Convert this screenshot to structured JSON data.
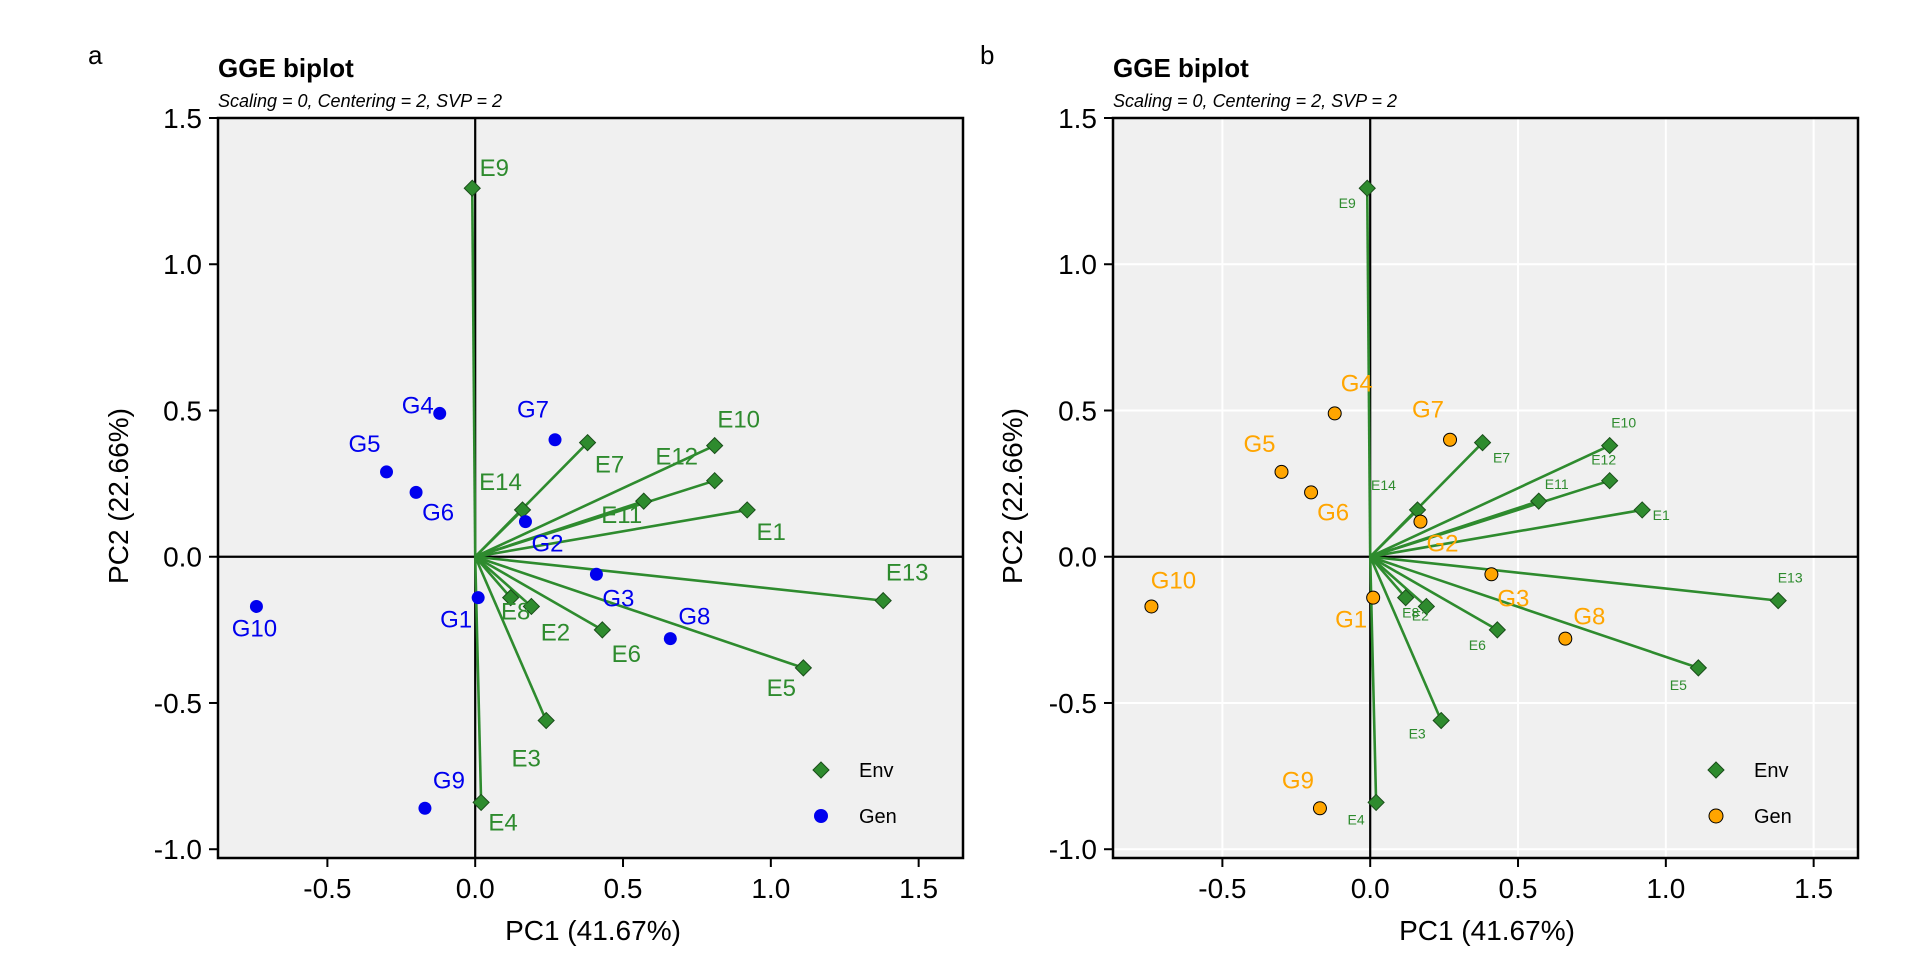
{
  "figure_panels": [
    "a",
    "b"
  ],
  "chart_data": [
    {
      "type": "scatter",
      "panel_label": "a",
      "title": "GGE biplot",
      "subtitle": "Scaling = 0, Centering = 2, SVP = 2",
      "xlabel": "PC1 (41.67%)",
      "ylabel": "PC2 (22.66%)",
      "xlim": [
        -0.87,
        1.65
      ],
      "ylim": [
        -1.03,
        1.5
      ],
      "xticks": [
        -0.5,
        0.0,
        0.5,
        1.0,
        1.5
      ],
      "xtick_labels": [
        "-0.5",
        "0.0",
        "0.5",
        "1.0",
        "1.5"
      ],
      "yticks": [
        -1.0,
        -0.5,
        0.0,
        0.5,
        1.0,
        1.5
      ],
      "ytick_labels": [
        "-1.0",
        "-0.5",
        "0.0",
        "0.5",
        "1.0",
        "1.5"
      ],
      "grid": false,
      "legend_position": "bottom-right",
      "legend": [
        "Env",
        "Gen"
      ],
      "env_color": "#2e8b2e",
      "gen_color": "#0000ee",
      "env_label_size": "large",
      "series": [
        {
          "name": "Env",
          "marker": "diamond",
          "vectors_from_origin": true,
          "points": [
            {
              "label": "E1",
              "x": 0.92,
              "y": 0.16
            },
            {
              "label": "E2",
              "x": 0.19,
              "y": -0.17
            },
            {
              "label": "E3",
              "x": 0.24,
              "y": -0.56
            },
            {
              "label": "E4",
              "x": 0.02,
              "y": -0.84
            },
            {
              "label": "E5",
              "x": 1.11,
              "y": -0.38
            },
            {
              "label": "E6",
              "x": 0.43,
              "y": -0.25
            },
            {
              "label": "E7",
              "x": 0.38,
              "y": 0.39
            },
            {
              "label": "E8",
              "x": 0.12,
              "y": -0.14
            },
            {
              "label": "E9",
              "x": -0.01,
              "y": 1.26
            },
            {
              "label": "E10",
              "x": 0.81,
              "y": 0.38
            },
            {
              "label": "E11",
              "x": 0.57,
              "y": 0.19
            },
            {
              "label": "E12",
              "x": 0.81,
              "y": 0.26
            },
            {
              "label": "E13",
              "x": 1.38,
              "y": -0.15
            },
            {
              "label": "E14",
              "x": 0.16,
              "y": 0.16
            }
          ]
        },
        {
          "name": "Gen",
          "marker": "circle",
          "vectors_from_origin": false,
          "points": [
            {
              "label": "G1",
              "x": 0.01,
              "y": -0.14
            },
            {
              "label": "G2",
              "x": 0.17,
              "y": 0.12
            },
            {
              "label": "G3",
              "x": 0.41,
              "y": -0.06
            },
            {
              "label": "G4",
              "x": -0.12,
              "y": 0.49
            },
            {
              "label": "G5",
              "x": -0.3,
              "y": 0.29
            },
            {
              "label": "G6",
              "x": -0.2,
              "y": 0.22
            },
            {
              "label": "G7",
              "x": 0.27,
              "y": 0.4
            },
            {
              "label": "G8",
              "x": 0.66,
              "y": -0.28
            },
            {
              "label": "G9",
              "x": -0.17,
              "y": -0.86
            },
            {
              "label": "G10",
              "x": -0.74,
              "y": -0.17
            }
          ]
        }
      ]
    },
    {
      "type": "scatter",
      "panel_label": "b",
      "title": "GGE biplot",
      "subtitle": "Scaling = 0, Centering = 2, SVP = 2",
      "xlabel": "PC1 (41.67%)",
      "ylabel": "PC2 (22.66%)",
      "xlim": [
        -0.87,
        1.65
      ],
      "ylim": [
        -1.03,
        1.5
      ],
      "xticks": [
        -0.5,
        0.0,
        0.5,
        1.0,
        1.5
      ],
      "xtick_labels": [
        "-0.5",
        "0.0",
        "0.5",
        "1.0",
        "1.5"
      ],
      "yticks": [
        -1.0,
        -0.5,
        0.0,
        0.5,
        1.0,
        1.5
      ],
      "ytick_labels": [
        "-1.0",
        "-0.5",
        "0.0",
        "0.5",
        "1.0",
        "1.5"
      ],
      "grid": true,
      "legend_position": "bottom-right",
      "legend": [
        "Env",
        "Gen"
      ],
      "env_color": "#2e8b2e",
      "gen_color": "#ffa500",
      "env_label_size": "small",
      "series": [
        {
          "name": "Env",
          "marker": "diamond",
          "vectors_from_origin": true,
          "points": [
            {
              "label": "E1",
              "x": 0.92,
              "y": 0.16
            },
            {
              "label": "E2",
              "x": 0.19,
              "y": -0.17
            },
            {
              "label": "E3",
              "x": 0.24,
              "y": -0.56
            },
            {
              "label": "E4",
              "x": 0.02,
              "y": -0.84
            },
            {
              "label": "E5",
              "x": 1.11,
              "y": -0.38
            },
            {
              "label": "E6",
              "x": 0.43,
              "y": -0.25
            },
            {
              "label": "E7",
              "x": 0.38,
              "y": 0.39
            },
            {
              "label": "E8",
              "x": 0.12,
              "y": -0.14
            },
            {
              "label": "E9",
              "x": -0.01,
              "y": 1.26
            },
            {
              "label": "E10",
              "x": 0.81,
              "y": 0.38
            },
            {
              "label": "E11",
              "x": 0.57,
              "y": 0.19
            },
            {
              "label": "E12",
              "x": 0.81,
              "y": 0.26
            },
            {
              "label": "E13",
              "x": 1.38,
              "y": -0.15
            },
            {
              "label": "E14",
              "x": 0.16,
              "y": 0.16
            }
          ]
        },
        {
          "name": "Gen",
          "marker": "circle",
          "vectors_from_origin": false,
          "points": [
            {
              "label": "G1",
              "x": 0.01,
              "y": -0.14
            },
            {
              "label": "G2",
              "x": 0.17,
              "y": 0.12
            },
            {
              "label": "G3",
              "x": 0.41,
              "y": -0.06
            },
            {
              "label": "G4",
              "x": -0.12,
              "y": 0.49
            },
            {
              "label": "G5",
              "x": -0.3,
              "y": 0.29
            },
            {
              "label": "G6",
              "x": -0.2,
              "y": 0.22
            },
            {
              "label": "G7",
              "x": 0.27,
              "y": 0.4
            },
            {
              "label": "G8",
              "x": 0.66,
              "y": -0.28
            },
            {
              "label": "G9",
              "x": -0.17,
              "y": -0.86
            },
            {
              "label": "G10",
              "x": -0.74,
              "y": -0.17
            }
          ]
        }
      ]
    }
  ]
}
